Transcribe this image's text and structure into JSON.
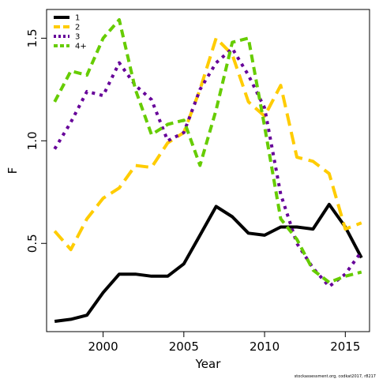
{
  "chart_data": {
    "type": "line",
    "xlabel": "Year",
    "ylabel": "F",
    "xlim": [
      1996.5,
      2016.5
    ],
    "ylim": [
      0.07,
      1.64
    ],
    "x_ticks": [
      2000,
      2005,
      2010,
      2015
    ],
    "x_tick_labels": [
      "2000",
      "2005",
      "2010",
      "2015"
    ],
    "y_ticks": [
      0.5,
      1.0,
      1.5
    ],
    "y_tick_labels": [
      "0.5",
      "1.0",
      "1.5"
    ],
    "grid": false,
    "legend_position": "top-left",
    "x": [
      1997,
      1998,
      1999,
      2000,
      2001,
      2002,
      2003,
      2004,
      2005,
      2006,
      2007,
      2008,
      2009,
      2010,
      2011,
      2012,
      2013,
      2014,
      2015,
      2016
    ],
    "series": [
      {
        "name": "1",
        "color": "#000000",
        "dash": "solid",
        "values": [
          0.12,
          0.13,
          0.15,
          0.26,
          0.35,
          0.35,
          0.34,
          0.34,
          0.4,
          0.54,
          0.68,
          0.63,
          0.55,
          0.54,
          0.58,
          0.58,
          0.57,
          0.69,
          0.58,
          0.43
        ]
      },
      {
        "name": "2",
        "color": "#ffcc00",
        "dash": "long",
        "values": [
          0.56,
          0.47,
          0.62,
          0.72,
          0.77,
          0.88,
          0.87,
          0.99,
          1.04,
          1.25,
          1.5,
          1.42,
          1.19,
          1.12,
          1.27,
          0.92,
          0.9,
          0.84,
          0.57,
          0.6
        ]
      },
      {
        "name": "3",
        "color": "#660099",
        "dash": "dotted",
        "values": [
          0.96,
          1.09,
          1.24,
          1.22,
          1.38,
          1.27,
          1.2,
          1.0,
          1.04,
          1.25,
          1.38,
          1.45,
          1.32,
          1.16,
          0.74,
          0.5,
          0.38,
          0.29,
          0.35,
          0.46
        ]
      },
      {
        "name": "4+",
        "color": "#66cc00",
        "dash": "dashed",
        "values": [
          1.19,
          1.34,
          1.32,
          1.5,
          1.59,
          1.25,
          1.03,
          1.08,
          1.1,
          0.88,
          1.15,
          1.48,
          1.5,
          1.07,
          0.62,
          0.52,
          0.37,
          0.31,
          0.34,
          0.36
        ]
      }
    ],
    "footnote": "stockassessment.org, codkat2017, r8217"
  }
}
